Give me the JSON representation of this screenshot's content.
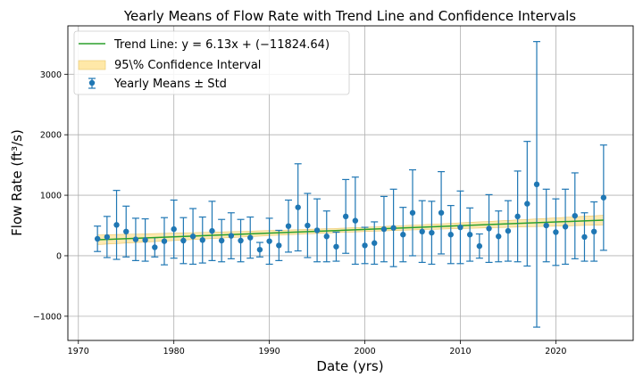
{
  "chart_data": {
    "type": "scatter",
    "title": "Yearly Means of Flow Rate with Trend Line and Confidence Intervals",
    "xlabel": "Date (yrs)",
    "ylabel": "Flow Rate (ft³/s)",
    "xlim": [
      1968.9,
      2028.1
    ],
    "ylim": [
      -1400,
      3800
    ],
    "xticks": [
      1970,
      1980,
      1990,
      2000,
      2010,
      2020
    ],
    "yticks": [
      -1000,
      0,
      1000,
      2000,
      3000
    ],
    "grid": true,
    "legend_position": "top-left",
    "legend": {
      "trend": "Trend Line: y = 6.13x + (−11824.64)",
      "ci": "95\\% Confidence Interval",
      "means": "Yearly Means ± Std"
    },
    "trend": {
      "slope": 6.13,
      "intercept": -11824.64,
      "x_range": [
        1972,
        2025
      ]
    },
    "ci_halfwidth": {
      "center_year": 1998.5,
      "min": 35,
      "edge": 80
    },
    "colors": {
      "points": "#1f77b4",
      "trend": "#2ca02c",
      "ci": "#ffe8a8",
      "ci_edge": "#e8c66a"
    },
    "series": [
      {
        "name": "Yearly Means ± Std",
        "x": [
          1972,
          1973,
          1974,
          1975,
          1976,
          1977,
          1978,
          1979,
          1980,
          1981,
          1982,
          1983,
          1984,
          1985,
          1986,
          1987,
          1988,
          1989,
          1990,
          1991,
          1992,
          1993,
          1994,
          1995,
          1996,
          1997,
          1998,
          1999,
          2000,
          2001,
          2002,
          2003,
          2004,
          2005,
          2006,
          2007,
          2008,
          2009,
          2010,
          2011,
          2012,
          2013,
          2014,
          2015,
          2016,
          2017,
          2018,
          2019,
          2020,
          2021,
          2022,
          2023,
          2024,
          2025
        ],
        "y": [
          280,
          310,
          510,
          400,
          270,
          260,
          140,
          240,
          440,
          250,
          320,
          260,
          410,
          250,
          330,
          250,
          300,
          100,
          240,
          170,
          490,
          800,
          500,
          420,
          320,
          150,
          650,
          580,
          170,
          210,
          440,
          460,
          350,
          710,
          400,
          380,
          710,
          350,
          470,
          350,
          160,
          450,
          320,
          410,
          650,
          860,
          1180,
          500,
          390,
          480,
          660,
          310,
          400,
          960
        ],
        "err": [
          210,
          340,
          570,
          420,
          350,
          350,
          160,
          390,
          480,
          380,
          460,
          380,
          490,
          350,
          380,
          350,
          340,
          120,
          380,
          250,
          430,
          720,
          530,
          520,
          420,
          240,
          610,
          720,
          300,
          350,
          540,
          640,
          450,
          710,
          510,
          520,
          680,
          480,
          600,
          440,
          200,
          560,
          420,
          500,
          750,
          1030,
          2360,
          600,
          550,
          620,
          710,
          400,
          490,
          870
        ]
      }
    ]
  }
}
